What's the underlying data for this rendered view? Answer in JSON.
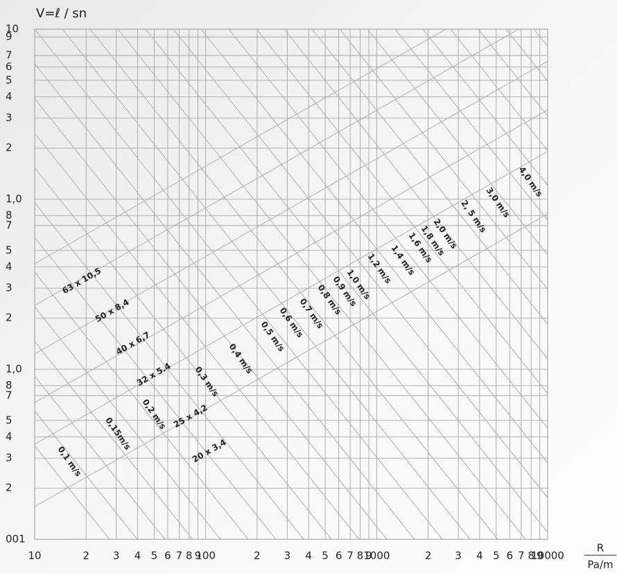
{
  "chart_data": {
    "type": "nomogram",
    "y_label": "V=ℓ / sn",
    "x_label": "R",
    "x_unit": "Pa/m",
    "log_x": true,
    "log_y": true,
    "grid": true,
    "xlim": [
      10,
      10000
    ],
    "ylim": [
      0.01,
      10
    ],
    "xticks": [
      10,
      {
        "value": 20,
        "label": "2"
      },
      {
        "value": 30,
        "label": "3"
      },
      {
        "value": 40,
        "label": "4"
      },
      {
        "value": 50,
        "label": "5"
      },
      {
        "value": 60,
        "label": "6"
      },
      {
        "value": 70,
        "label": "7"
      },
      {
        "value": 80,
        "label": "8"
      },
      {
        "value": 90,
        "label": "9"
      },
      100,
      {
        "value": 200,
        "label": "2"
      },
      {
        "value": 300,
        "label": "3"
      },
      {
        "value": 400,
        "label": "4"
      },
      {
        "value": 500,
        "label": "5"
      },
      {
        "value": 600,
        "label": "6"
      },
      {
        "value": 700,
        "label": "7"
      },
      {
        "value": 800,
        "label": "8"
      },
      {
        "value": 900,
        "label": "9"
      },
      1000,
      {
        "value": 2000,
        "label": "2"
      },
      {
        "value": 3000,
        "label": "3"
      },
      {
        "value": 4000,
        "label": "4"
      },
      {
        "value": 5000,
        "label": "5"
      },
      {
        "value": 6000,
        "label": "6"
      },
      {
        "value": 7000,
        "label": "7"
      },
      {
        "value": 8000,
        "label": "8"
      },
      {
        "value": 9000,
        "label": "9"
      },
      10000
    ],
    "yticks": [
      10,
      9,
      7,
      6,
      5,
      4,
      3,
      2,
      {
        "value": 1,
        "label": "1,0"
      },
      {
        "value": 0.8,
        "label": "8"
      },
      {
        "value": 0.7,
        "label": "7"
      },
      {
        "value": 0.5,
        "label": "5"
      },
      {
        "value": 0.4,
        "label": "4"
      },
      {
        "value": 0.3,
        "label": "3"
      },
      {
        "value": 0.2,
        "label": "2"
      },
      {
        "value": 0.1,
        "label": "1,0"
      },
      {
        "value": 0.08,
        "label": "8"
      },
      {
        "value": 0.07,
        "label": "7"
      },
      {
        "value": 0.05,
        "label": "5"
      },
      {
        "value": 0.04,
        "label": "4"
      },
      {
        "value": 0.03,
        "label": "3"
      },
      {
        "value": 0.02,
        "label": "2"
      },
      {
        "value": 0.01,
        "label": "001"
      }
    ],
    "pipe_sizes": [
      "63 x 10,5",
      "50 x 8,4",
      "40 x 6,7",
      "32 x 5.4",
      "25 x 4,2",
      "20 x 3,4"
    ],
    "velocities": [
      "0,1 m/s",
      "0,15m/s",
      "0,2 m/s",
      "0,3 m/s",
      "0,4 m/s",
      "0,5 m/s",
      "0,6 m/s",
      "0,7 m/s",
      "0,8 m/s",
      "0,9 m/s",
      "1,0 m/s",
      "1,2 m/s",
      "1,4 m/s",
      "1,6 m/s",
      "1,8 m/s",
      "2,0 m/s",
      "2, 5 m/s",
      "3,0 m/s",
      "4,0 m/s"
    ]
  }
}
